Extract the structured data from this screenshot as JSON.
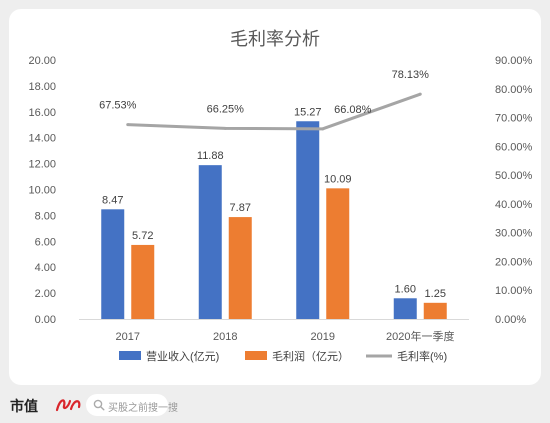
{
  "chart_data": {
    "type": "bar",
    "title": "毛利率分析",
    "categories": [
      "2017",
      "2018",
      "2019",
      "2020年一季度"
    ],
    "series": [
      {
        "name": "营业收入(亿元)",
        "kind": "bar",
        "axis": "left",
        "color": "#4472C4",
        "values": [
          8.47,
          11.88,
          15.27,
          1.6
        ],
        "labels": [
          "8.47",
          "11.88",
          "15.27",
          "1.60"
        ]
      },
      {
        "name": "毛利润（亿元）",
        "kind": "bar",
        "axis": "left",
        "color": "#ED7D31",
        "values": [
          5.72,
          7.87,
          10.09,
          1.25
        ],
        "labels": [
          "5.72",
          "7.87",
          "10.09",
          "1.25"
        ]
      },
      {
        "name": "毛利率(%)",
        "kind": "line",
        "axis": "right",
        "color": "#A5A5A5",
        "values": [
          67.53,
          66.25,
          66.08,
          78.13
        ],
        "labels": [
          "67.53%",
          "66.25%",
          "66.08%",
          "78.13%"
        ]
      }
    ],
    "y_left": {
      "range": [
        0,
        20
      ],
      "ticks": [
        "0.00",
        "2.00",
        "4.00",
        "6.00",
        "8.00",
        "10.00",
        "12.00",
        "14.00",
        "16.00",
        "18.00",
        "20.00"
      ]
    },
    "y_right": {
      "range": [
        0,
        90
      ],
      "ticks": [
        "0.00%",
        "10.00%",
        "20.00%",
        "30.00%",
        "40.00%",
        "50.00%",
        "60.00%",
        "70.00%",
        "80.00%",
        "90.00%"
      ]
    },
    "grid": false,
    "legend": "bottom"
  },
  "footer": {
    "brand": "市值",
    "search_placeholder": "买股之前搜一搜",
    "icons": [
      "brand-logo",
      "search-icon"
    ]
  }
}
